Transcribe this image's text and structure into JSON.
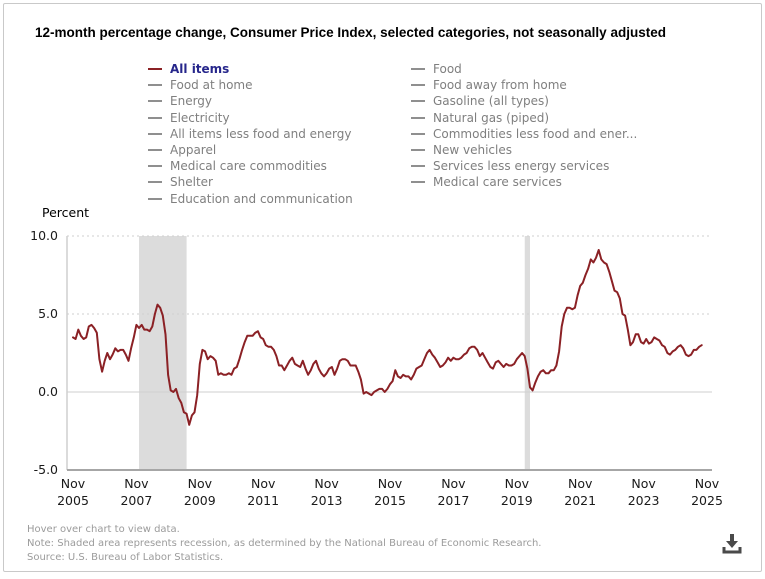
{
  "title": "12-month percentage change, Consumer Price Index, selected categories, not seasonally adjusted",
  "legend": {
    "selected": "All items",
    "column1": [
      "All items",
      "Food at home",
      "Energy",
      "Electricity",
      "All items less food and energy",
      "Apparel",
      "Medical care commodities",
      "Shelter",
      "Education and communication"
    ],
    "column2": [
      "Food",
      "Food away from home",
      "Gasoline (all types)",
      "Natural gas (piped)",
      "Commodities less food and ener...",
      "New vehicles",
      "Services less energy services",
      "Medical care services"
    ]
  },
  "colors": {
    "selected_line": "#8b2125",
    "selected_legend_text": "#26268b",
    "legend_gray": "#8f8f8f",
    "legend_text_gray": "#7f7f7f",
    "gridline": "#cfcfcf",
    "bottom_axis": "#a6a6a6",
    "recession_band": "#dcdcdc",
    "footer_text": "#9b9b9b",
    "download_icon": "#4a4a4a"
  },
  "chart_data": {
    "type": "line",
    "series_name": "All items",
    "frequency": "monthly",
    "x_start": "Nov 2005",
    "x_end": "Sep 2025",
    "ylabel": "Percent",
    "ylim": [
      -5,
      10
    ],
    "yticks": [
      {
        "label": "10.0",
        "value": 10.0,
        "style": "dotted"
      },
      {
        "label": "5.0",
        "value": 5.0,
        "style": "dotted"
      },
      {
        "label": "0.0",
        "value": 0.0,
        "style": "solid"
      },
      {
        "label": "-5.0",
        "value": -5.0,
        "style": "axis"
      }
    ],
    "xticks": [
      {
        "month": "Nov",
        "year": "2005"
      },
      {
        "month": "Nov",
        "year": "2007"
      },
      {
        "month": "Nov",
        "year": "2009"
      },
      {
        "month": "Nov",
        "year": "2011"
      },
      {
        "month": "Nov",
        "year": "2013"
      },
      {
        "month": "Nov",
        "year": "2015"
      },
      {
        "month": "Nov",
        "year": "2017"
      },
      {
        "month": "Nov",
        "year": "2019"
      },
      {
        "month": "Nov",
        "year": "2021"
      },
      {
        "month": "Nov",
        "year": "2023"
      },
      {
        "month": "Nov",
        "year": "2025"
      }
    ],
    "months_per_tick": 24,
    "values": [
      3.5,
      3.4,
      4.0,
      3.6,
      3.4,
      3.5,
      4.2,
      4.3,
      4.1,
      3.8,
      2.1,
      1.3,
      2.0,
      2.5,
      2.1,
      2.4,
      2.8,
      2.6,
      2.7,
      2.7,
      2.4,
      2.0,
      2.8,
      3.5,
      4.3,
      4.1,
      4.3,
      4.0,
      4.0,
      3.9,
      4.2,
      5.0,
      5.6,
      5.4,
      4.9,
      3.7,
      1.1,
      0.1,
      0.0,
      0.2,
      -0.4,
      -0.7,
      -1.3,
      -1.4,
      -2.1,
      -1.5,
      -1.3,
      -0.2,
      1.8,
      2.7,
      2.6,
      2.1,
      2.3,
      2.2,
      2.0,
      1.1,
      1.2,
      1.1,
      1.1,
      1.2,
      1.1,
      1.5,
      1.6,
      2.1,
      2.7,
      3.2,
      3.6,
      3.6,
      3.6,
      3.8,
      3.9,
      3.5,
      3.4,
      3.0,
      2.9,
      2.9,
      2.7,
      2.3,
      1.7,
      1.7,
      1.4,
      1.7,
      2.0,
      2.2,
      1.8,
      1.7,
      1.6,
      2.0,
      1.5,
      1.1,
      1.4,
      1.8,
      2.0,
      1.5,
      1.2,
      1.0,
      1.2,
      1.5,
      1.6,
      1.1,
      1.5,
      2.0,
      2.1,
      2.1,
      2.0,
      1.7,
      1.7,
      1.7,
      1.3,
      0.8,
      -0.1,
      0.0,
      -0.1,
      -0.2,
      0.0,
      0.1,
      0.2,
      0.2,
      0.0,
      0.2,
      0.5,
      0.7,
      1.4,
      1.0,
      0.9,
      1.1,
      1.0,
      1.0,
      0.8,
      1.1,
      1.5,
      1.6,
      1.7,
      2.1,
      2.5,
      2.7,
      2.4,
      2.2,
      1.9,
      1.6,
      1.7,
      1.9,
      2.2,
      2.0,
      2.2,
      2.1,
      2.1,
      2.2,
      2.4,
      2.5,
      2.8,
      2.9,
      2.9,
      2.7,
      2.3,
      2.5,
      2.2,
      1.9,
      1.6,
      1.5,
      1.9,
      2.0,
      1.8,
      1.6,
      1.8,
      1.7,
      1.7,
      1.8,
      2.1,
      2.3,
      2.5,
      2.3,
      1.5,
      0.3,
      0.1,
      0.6,
      1.0,
      1.3,
      1.4,
      1.2,
      1.2,
      1.4,
      1.4,
      1.7,
      2.6,
      4.2,
      5.0,
      5.4,
      5.4,
      5.3,
      5.4,
      6.2,
      6.8,
      7.0,
      7.5,
      7.9,
      8.5,
      8.3,
      8.6,
      9.1,
      8.5,
      8.3,
      8.2,
      7.7,
      7.1,
      6.5,
      6.4,
      6.0,
      5.0,
      4.9,
      4.0,
      3.0,
      3.2,
      3.7,
      3.7,
      3.2,
      3.1,
      3.4,
      3.1,
      3.2,
      3.5,
      3.4,
      3.3,
      3.0,
      2.9,
      2.5,
      2.4,
      2.6,
      2.7,
      2.9,
      3.0,
      2.8,
      2.4,
      2.3,
      2.4,
      2.7,
      2.7,
      2.9,
      3.0
    ],
    "recession_bands": [
      {
        "label": "Dec 2007 - Jun 2009 recession",
        "from_month_index": 25,
        "to_month_index": 43
      },
      {
        "label": "Feb 2020 - Apr 2020 recession",
        "from_month_index": 171,
        "to_month_index": 173
      }
    ]
  },
  "footer": {
    "hover": "Hover over chart to view data.",
    "note": "Note: Shaded area represents recession, as determined by the National Bureau of Economic Research.",
    "source": "Source: U.S. Bureau of Labor Statistics."
  },
  "icons": {
    "download": "download-icon"
  }
}
